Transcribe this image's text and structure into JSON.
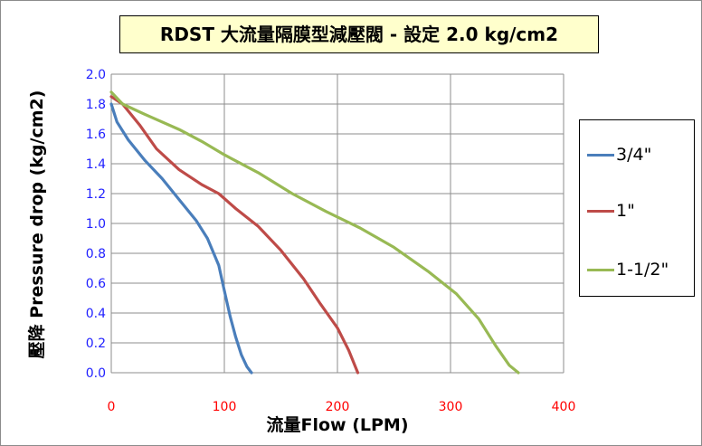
{
  "title": "RDST 大流量隔膜型減壓閥 - 設定 2.0 kg/cm2",
  "chart_data": {
    "type": "line",
    "title": "RDST 大流量隔膜型減壓閥 - 設定 2.0 kg/cm2",
    "xlabel": "流量Flow (LPM)",
    "ylabel": "壓降 Pressure drop (kg/cm2)",
    "xlim": [
      0,
      400
    ],
    "ylim": [
      0,
      2.0
    ],
    "x_ticks": [
      "0",
      "100",
      "200",
      "300",
      "400"
    ],
    "y_ticks": [
      "0.0",
      "0.2",
      "0.4",
      "0.6",
      "0.8",
      "1.0",
      "1.2",
      "1.4",
      "1.6",
      "1.8",
      "2.0"
    ],
    "grid": true,
    "legend_position": "right",
    "x_tick_color": "#ff0000",
    "y_tick_color": "#1f1fff",
    "series": [
      {
        "name": "3/4\"",
        "color": "#4a7ebb",
        "points": [
          [
            0,
            1.8
          ],
          [
            5,
            1.68
          ],
          [
            15,
            1.56
          ],
          [
            30,
            1.42
          ],
          [
            45,
            1.3
          ],
          [
            60,
            1.16
          ],
          [
            75,
            1.02
          ],
          [
            85,
            0.9
          ],
          [
            95,
            0.72
          ],
          [
            100,
            0.55
          ],
          [
            105,
            0.38
          ],
          [
            110,
            0.24
          ],
          [
            115,
            0.12
          ],
          [
            120,
            0.04
          ],
          [
            124,
            0.0
          ]
        ]
      },
      {
        "name": "1\"",
        "color": "#be4b48",
        "points": [
          [
            0,
            1.85
          ],
          [
            10,
            1.8
          ],
          [
            25,
            1.66
          ],
          [
            40,
            1.5
          ],
          [
            60,
            1.36
          ],
          [
            80,
            1.26
          ],
          [
            95,
            1.2
          ],
          [
            110,
            1.1
          ],
          [
            130,
            0.98
          ],
          [
            150,
            0.82
          ],
          [
            170,
            0.63
          ],
          [
            185,
            0.46
          ],
          [
            200,
            0.3
          ],
          [
            210,
            0.15
          ],
          [
            218,
            0.0
          ]
        ]
      },
      {
        "name": "1-1/2\"",
        "color": "#98b954",
        "points": [
          [
            0,
            1.88
          ],
          [
            10,
            1.8
          ],
          [
            30,
            1.73
          ],
          [
            60,
            1.63
          ],
          [
            80,
            1.55
          ],
          [
            100,
            1.46
          ],
          [
            130,
            1.34
          ],
          [
            160,
            1.2
          ],
          [
            190,
            1.08
          ],
          [
            220,
            0.97
          ],
          [
            250,
            0.84
          ],
          [
            280,
            0.68
          ],
          [
            305,
            0.53
          ],
          [
            325,
            0.36
          ],
          [
            340,
            0.18
          ],
          [
            352,
            0.05
          ],
          [
            360,
            0.0
          ]
        ]
      }
    ]
  }
}
